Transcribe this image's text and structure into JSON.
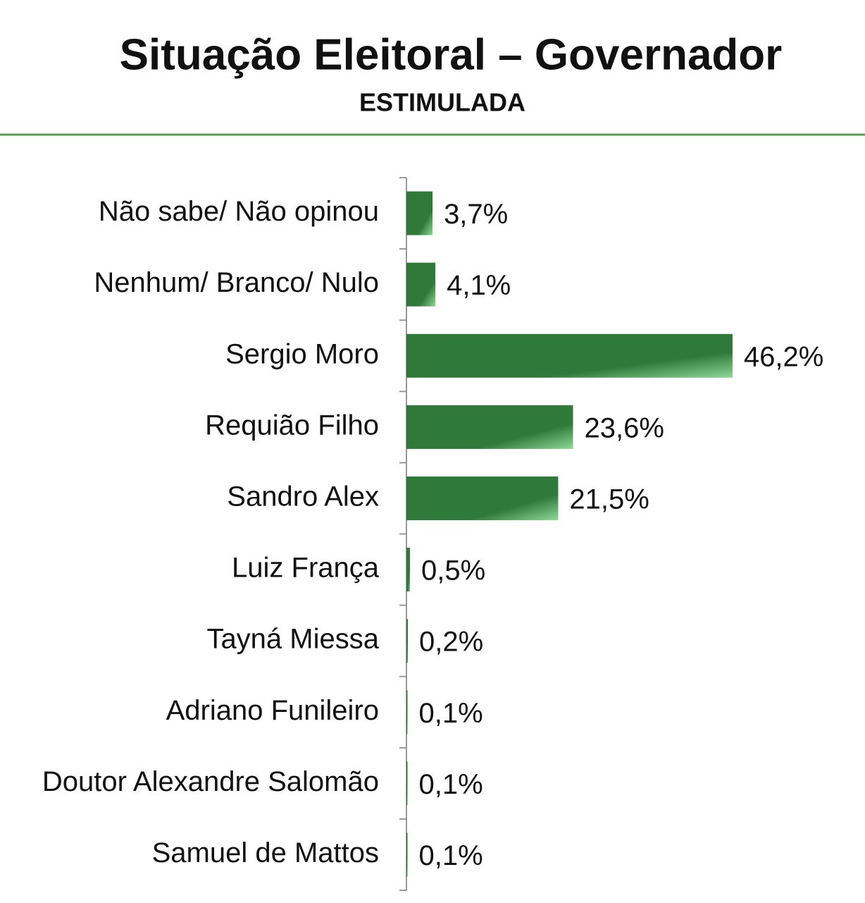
{
  "chart_data": {
    "type": "bar",
    "orientation": "horizontal",
    "title": "Situação Eleitoral – Governador",
    "subtitle": "ESTIMULADA",
    "categories": [
      "Não sabe/ Não opinou",
      "Nenhum/ Branco/ Nulo",
      "Sergio Moro",
      "Requião Filho",
      "Sandro Alex",
      "Luiz França",
      "Tayná Miessa",
      "Adriano Funileiro",
      "Doutor Alexandre Salomão",
      "Samuel de Mattos"
    ],
    "values": [
      3.7,
      4.1,
      46.2,
      23.6,
      21.5,
      0.5,
      0.2,
      0.1,
      0.1,
      0.1
    ],
    "value_labels": [
      "3,7%",
      "4,1%",
      "46,2%",
      "23,6%",
      "21,5%",
      "0,5%",
      "0,2%",
      "0,1%",
      "0,1%",
      "0,1%"
    ],
    "color": "#2f7a3a"
  }
}
